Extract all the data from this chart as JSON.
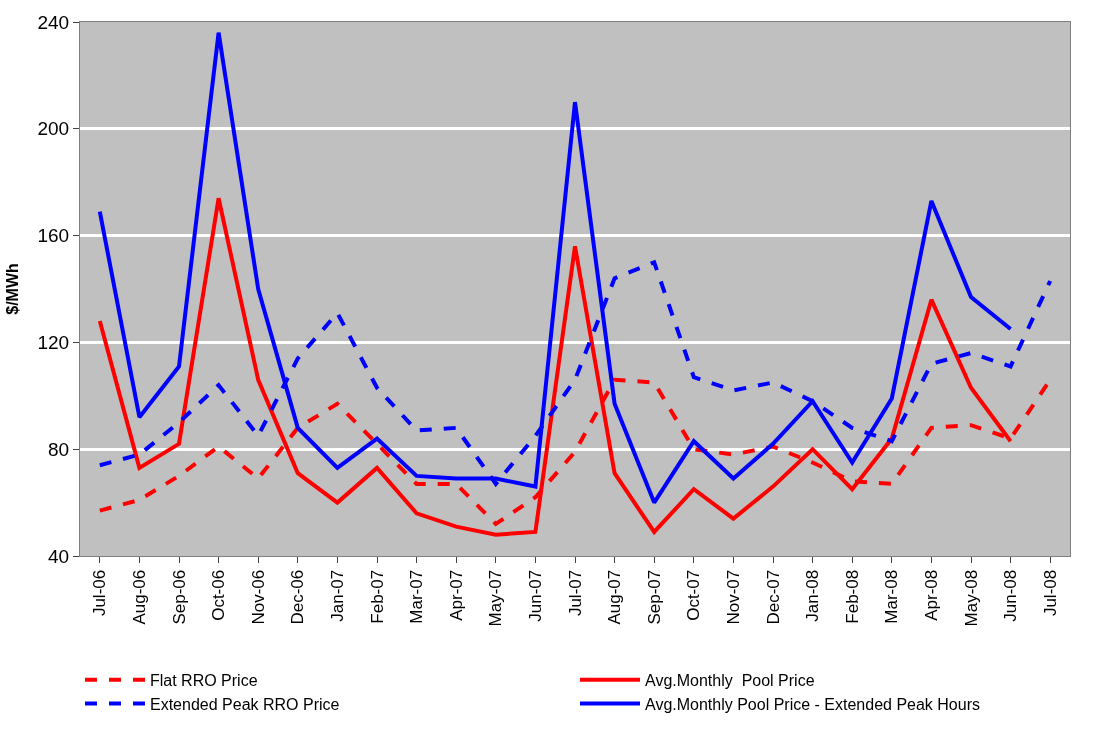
{
  "chart_data": {
    "type": "line",
    "ylabel": "$/MWh",
    "categories": [
      "Jul-06",
      "Aug-06",
      "Sep-06",
      "Oct-06",
      "Nov-06",
      "Dec-06",
      "Jan-07",
      "Feb-07",
      "Mar-07",
      "Apr-07",
      "May-07",
      "Jun-07",
      "Jul-07",
      "Aug-07",
      "Sep-07",
      "Oct-07",
      "Nov-07",
      "Dec-07",
      "Jan-08",
      "Feb-08",
      "Mar-08",
      "Apr-08",
      "May-08",
      "Jun-08",
      "Jul-08"
    ],
    "series": [
      {
        "name": "Flat RRO Price",
        "color": "#ff0000",
        "line_style": "dashed",
        "values": [
          57,
          61,
          70,
          81,
          69,
          88,
          97,
          82,
          67,
          67,
          52,
          62,
          79,
          106,
          105,
          80,
          78,
          81,
          75,
          68,
          67,
          88,
          89,
          84,
          106
        ]
      },
      {
        "name": "Avg.Monthly  Pool Price",
        "color": "#ff0000",
        "line_style": "solid",
        "values": [
          128,
          73,
          82,
          174,
          106,
          71,
          60,
          73,
          56,
          51,
          48,
          49,
          156,
          71,
          49,
          65,
          54,
          66,
          80,
          65,
          84,
          136,
          103,
          83,
          null
        ]
      },
      {
        "name": "Extended Peak RRO Price",
        "color": "#0000ff",
        "line_style": "dashed",
        "values": [
          74,
          78,
          90,
          104,
          85,
          114,
          131,
          103,
          87,
          88,
          67,
          85,
          106,
          144,
          150,
          107,
          102,
          105,
          98,
          88,
          83,
          112,
          116,
          111,
          143
        ]
      },
      {
        "name": "Avg.Monthly Pool Price - Extended Peak Hours",
        "color": "#0000ff",
        "line_style": "solid",
        "values": [
          169,
          92,
          111,
          236,
          140,
          88,
          73,
          84,
          70,
          69,
          69,
          66,
          210,
          97,
          60,
          83,
          69,
          82,
          98,
          75,
          99,
          173,
          137,
          125,
          null
        ]
      }
    ],
    "ylim": [
      40,
      240
    ],
    "yticks": [
      40,
      80,
      120,
      160,
      200,
      240
    ],
    "grid": "y",
    "legend": "bottom",
    "marker": "none"
  }
}
